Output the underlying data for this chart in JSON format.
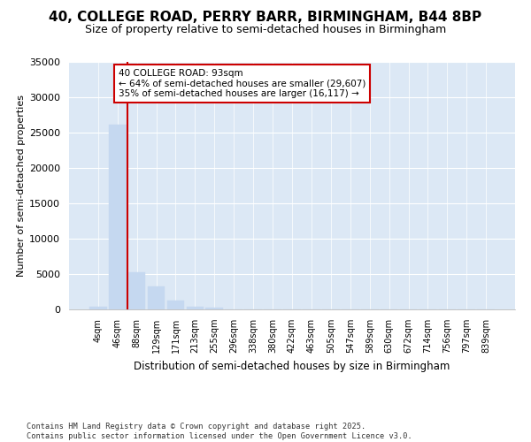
{
  "title": "40, COLLEGE ROAD, PERRY BARR, BIRMINGHAM, B44 8BP",
  "subtitle": "Size of property relative to semi-detached houses in Birmingham",
  "xlabel": "Distribution of semi-detached houses by size in Birmingham",
  "ylabel": "Number of semi-detached properties",
  "categories": [
    "4sqm",
    "46sqm",
    "88sqm",
    "129sqm",
    "171sqm",
    "213sqm",
    "255sqm",
    "296sqm",
    "338sqm",
    "380sqm",
    "422sqm",
    "463sqm",
    "505sqm",
    "547sqm",
    "589sqm",
    "630sqm",
    "672sqm",
    "714sqm",
    "756sqm",
    "797sqm",
    "839sqm"
  ],
  "values": [
    380,
    26100,
    5200,
    3200,
    1200,
    400,
    200,
    60,
    15,
    5,
    2,
    1,
    0,
    0,
    0,
    0,
    0,
    0,
    0,
    0,
    0
  ],
  "bar_color": "#c5d8f0",
  "vline_color": "#cc0000",
  "vline_bar_index": 2,
  "annotation_text": "40 COLLEGE ROAD: 93sqm\n← 64% of semi-detached houses are smaller (29,607)\n35% of semi-detached houses are larger (16,117) →",
  "annotation_box_color": "#cc0000",
  "ylim": [
    0,
    35000
  ],
  "yticks": [
    0,
    5000,
    10000,
    15000,
    20000,
    25000,
    30000,
    35000
  ],
  "fig_bg": "#ffffff",
  "plot_bg": "#dce8f5",
  "title_fontsize": 11,
  "subtitle_fontsize": 9,
  "footer": "Contains HM Land Registry data © Crown copyright and database right 2025.\nContains public sector information licensed under the Open Government Licence v3.0."
}
